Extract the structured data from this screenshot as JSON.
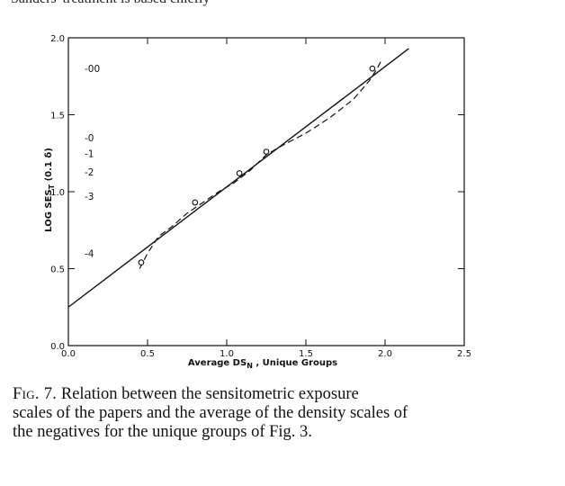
{
  "header_fragment": "Sanders' treatment is based chiefly",
  "caption": {
    "fig_label": "Fig. 7.",
    "line1": "Relation between the sensitometric exposure",
    "line2": "scales of the papers and the average of the density scales of",
    "line3": "the negatives for the unique groups of Fig. 3."
  },
  "chart_data": {
    "type": "line",
    "xlabel_main": "Average DS",
    "xlabel_sub": "N",
    "xlabel_suffix": ", Unique Groups",
    "ylabel": "LOG SES",
    "ylabel_sub": "T",
    "ylabel_suffix": "(0.1 δ)",
    "xlim": [
      0.0,
      2.5
    ],
    "ylim": [
      0.0,
      2.0
    ],
    "x_ticks": [
      0.0,
      0.5,
      1.0,
      1.5,
      2.0,
      2.5
    ],
    "x_tick_labels": [
      "0.0",
      "0.5",
      "1.0",
      "1.5",
      "2.0",
      "2.5"
    ],
    "y_ticks": [
      0.0,
      0.5,
      1.0,
      1.5,
      2.0
    ],
    "y_tick_labels": [
      "0.0",
      "0.5",
      "1.0",
      "1.5",
      "2.0"
    ],
    "series": [
      {
        "style": "solid",
        "x": [
          0.0,
          2.15
        ],
        "y": [
          0.25,
          1.93
        ]
      },
      {
        "style": "dashed",
        "x": [
          0.45,
          0.5,
          0.57,
          0.65,
          0.75,
          0.85,
          0.95,
          1.05,
          1.15,
          1.25,
          1.35,
          1.5,
          1.65,
          1.8,
          1.9,
          1.95,
          1.98
        ],
        "y": [
          0.5,
          0.6,
          0.71,
          0.77,
          0.86,
          0.93,
          1.0,
          1.06,
          1.14,
          1.24,
          1.3,
          1.38,
          1.48,
          1.6,
          1.72,
          1.8,
          1.86
        ]
      },
      {
        "style": "markers",
        "x": [
          0.46,
          0.8,
          1.08,
          1.25,
          1.92
        ],
        "y": [
          0.54,
          0.93,
          1.12,
          1.26,
          1.8
        ]
      }
    ],
    "right_scale_labels": [
      {
        "label": "-00",
        "y": 1.8
      },
      {
        "label": "-0",
        "y": 1.35
      },
      {
        "label": "-1",
        "y": 1.25
      },
      {
        "label": "-2",
        "y": 1.13
      },
      {
        "label": "-3",
        "y": 0.97
      },
      {
        "label": "-4",
        "y": 0.6
      }
    ]
  }
}
